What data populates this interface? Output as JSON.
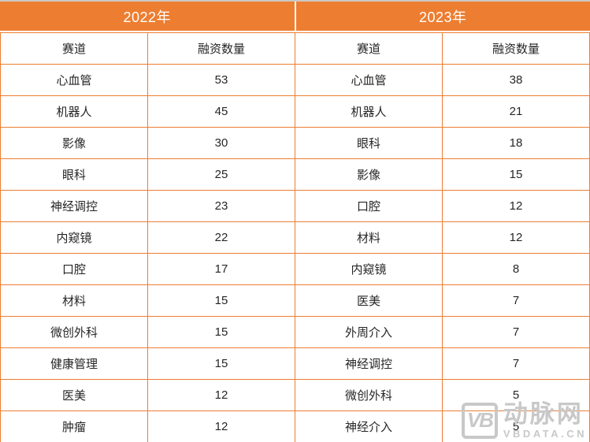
{
  "colors": {
    "accent": "#ED7D31",
    "grid_line": "#ED7D31",
    "header_text": "#FFFFFF",
    "body_text": "#262626",
    "watermark": "#C8C8C8"
  },
  "watermark": {
    "logo_text": "VB",
    "brand": "动脉网",
    "site": "VBDATA.CN"
  },
  "chart_data": [
    {
      "type": "table",
      "title": "2022年",
      "columns": [
        "赛道",
        "融资数量"
      ],
      "rows": [
        [
          "心血管",
          "53"
        ],
        [
          "机器人",
          "45"
        ],
        [
          "影像",
          "30"
        ],
        [
          "眼科",
          "25"
        ],
        [
          "神经调控",
          "23"
        ],
        [
          "内窥镜",
          "22"
        ],
        [
          "口腔",
          "17"
        ],
        [
          "材料",
          "15"
        ],
        [
          "微创外科",
          "15"
        ],
        [
          "健康管理",
          "15"
        ],
        [
          "医美",
          "12"
        ],
        [
          "肿瘤",
          "12"
        ]
      ]
    },
    {
      "type": "table",
      "title": "2023年",
      "columns": [
        "赛道",
        "融资数量"
      ],
      "rows": [
        [
          "心血管",
          "38"
        ],
        [
          "机器人",
          "21"
        ],
        [
          "眼科",
          "18"
        ],
        [
          "影像",
          "15"
        ],
        [
          "口腔",
          "12"
        ],
        [
          "材料",
          "12"
        ],
        [
          "内窥镜",
          "8"
        ],
        [
          "医美",
          "7"
        ],
        [
          "外周介入",
          "7"
        ],
        [
          "神经调控",
          "7"
        ],
        [
          "微创外科",
          "5"
        ],
        [
          "神经介入",
          "5"
        ]
      ]
    }
  ]
}
